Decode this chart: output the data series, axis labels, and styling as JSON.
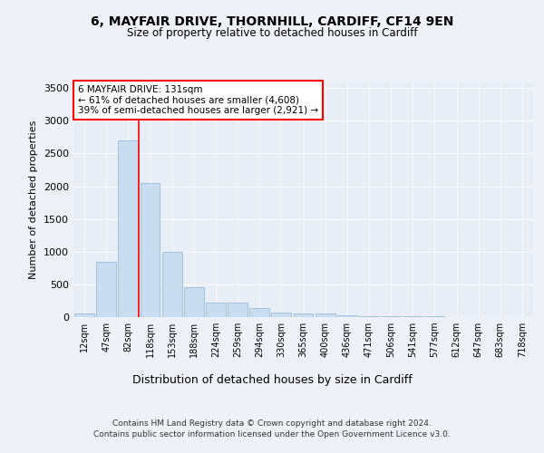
{
  "title1": "6, MAYFAIR DRIVE, THORNHILL, CARDIFF, CF14 9EN",
  "title2": "Size of property relative to detached houses in Cardiff",
  "xlabel": "Distribution of detached houses by size in Cardiff",
  "ylabel": "Number of detached properties",
  "categories": [
    "12sqm",
    "47sqm",
    "82sqm",
    "118sqm",
    "153sqm",
    "188sqm",
    "224sqm",
    "259sqm",
    "294sqm",
    "330sqm",
    "365sqm",
    "400sqm",
    "436sqm",
    "471sqm",
    "506sqm",
    "541sqm",
    "577sqm",
    "612sqm",
    "647sqm",
    "683sqm",
    "718sqm"
  ],
  "values": [
    50,
    850,
    2700,
    2050,
    1000,
    460,
    220,
    220,
    140,
    70,
    60,
    50,
    30,
    20,
    15,
    10,
    8,
    5,
    4,
    3,
    2
  ],
  "bar_color": "#c9ddf0",
  "bar_edge_color": "#8eb4d8",
  "vline_x": 2.5,
  "annotation_title": "6 MAYFAIR DRIVE: 131sqm",
  "annotation_line1": "← 61% of detached houses are smaller (4,608)",
  "annotation_line2": "39% of semi-detached houses are larger (2,921) →",
  "ylim": [
    0,
    3600
  ],
  "yticks": [
    0,
    500,
    1000,
    1500,
    2000,
    2500,
    3000,
    3500
  ],
  "footnote1": "Contains HM Land Registry data © Crown copyright and database right 2024.",
  "footnote2": "Contains public sector information licensed under the Open Government Licence v3.0.",
  "bg_color": "#eef2f8",
  "plot_bg": "#e8eef6"
}
